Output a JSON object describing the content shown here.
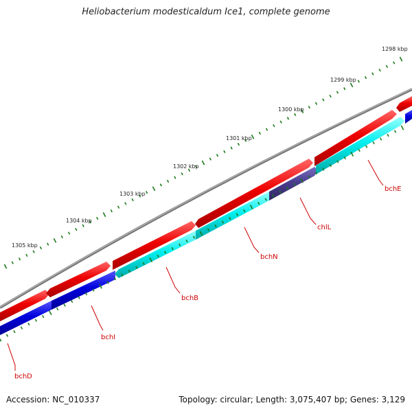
{
  "title": "Heliobacterium modesticaldum Ice1, complete genome",
  "footer": {
    "accession": "Accession: NC_010337",
    "summary": "Topology: circular; Length: 3,075,407 bp; Genes: 3,129"
  },
  "colors": {
    "backbone": "#888888",
    "forward_cds": "#ee0000",
    "reverse_cds_cyan": "#00eeee",
    "reverse_cds_blue": "#0000dd",
    "reverse_cds_slate": "#4b3d8f",
    "tick": "#1a7a1a",
    "label": "#cc0000"
  },
  "kbp_labels": [
    "1298 kbp",
    "1299 kbp",
    "1300 kbp",
    "1301 kbp",
    "1302 kbp",
    "1303 kbp",
    "1304 kbp",
    "1305 kbp"
  ],
  "genes": [
    {
      "name": "bchE",
      "color": "reverse_cds_cyan"
    },
    {
      "name": "chlL",
      "color": "reverse_cds_slate"
    },
    {
      "name": "bchN",
      "color": "reverse_cds_cyan"
    },
    {
      "name": "bchB",
      "color": "reverse_cds_cyan"
    },
    {
      "name": "bchI",
      "color": "reverse_cds_blue"
    },
    {
      "name": "bchD",
      "color": "reverse_cds_blue"
    }
  ]
}
